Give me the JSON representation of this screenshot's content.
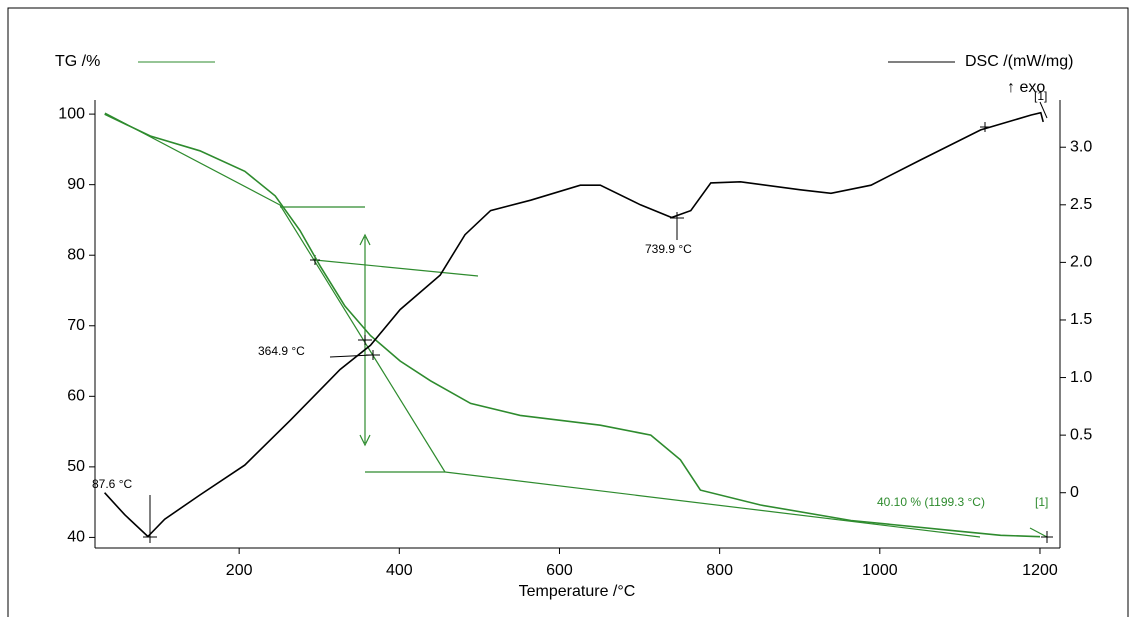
{
  "chart_data": {
    "type": "line",
    "x_label": "Temperature /°C",
    "xlim": [
      20,
      1225
    ],
    "xticks": [
      200,
      400,
      600,
      800,
      1000,
      1200
    ],
    "ylim": [
      38.5,
      102
    ],
    "yticks": [
      40,
      50,
      60,
      70,
      80,
      90,
      100
    ],
    "y2lim": [
      -0.48,
      3.41
    ],
    "y2ticks": [
      0,
      0.5,
      {
        "value": 1,
        "label": "1.0"
      },
      1.5,
      {
        "value": 2,
        "label": "2.0"
      },
      2.5,
      {
        "value": 3,
        "label": "3.0"
      }
    ],
    "series": [
      {
        "name": "TG /%",
        "color": "#2e8b2e",
        "x": [
          32,
          89,
          151,
          207,
          245,
          276,
          301,
          332,
          364,
          401,
          439,
          489,
          551,
          651,
          714,
          751,
          776,
          851,
          964,
          1089,
          1151,
          1200
        ],
        "values": [
          100,
          96.9,
          94.8,
          91.9,
          88.4,
          83.5,
          78.5,
          72.8,
          68.6,
          65,
          62.2,
          59,
          57.3,
          55.9,
          54.5,
          51,
          46.7,
          44.6,
          42.4,
          41,
          40.3,
          40.1
        ]
      },
      {
        "name": "DSC /(mW/mg)",
        "color": "#000000",
        "axis": "y2",
        "x": [
          32,
          57,
          86,
          107,
          151,
          207,
          264,
          326,
          364,
          401,
          451,
          482,
          514,
          564,
          626,
          651,
          701,
          740,
          764,
          789,
          826,
          901,
          939,
          989,
          1051,
          1126,
          1189,
          1201,
          1204
        ],
        "values": [
          0,
          -0.19,
          -0.38,
          -0.23,
          -0.02,
          0.24,
          0.63,
          1.07,
          1.28,
          1.59,
          1.89,
          2.24,
          2.45,
          2.54,
          2.67,
          2.67,
          2.5,
          2.39,
          2.45,
          2.69,
          2.7,
          2.63,
          2.6,
          2.67,
          2.89,
          3.15,
          3.28,
          3.3,
          3.22
        ]
      }
    ],
    "annotations": [
      "87.6 °C",
      "364.9 °C",
      "739.9 °C",
      "40.10 % (1199.3 °C)",
      "[1]",
      "[1]",
      "↑ exo"
    ]
  }
}
